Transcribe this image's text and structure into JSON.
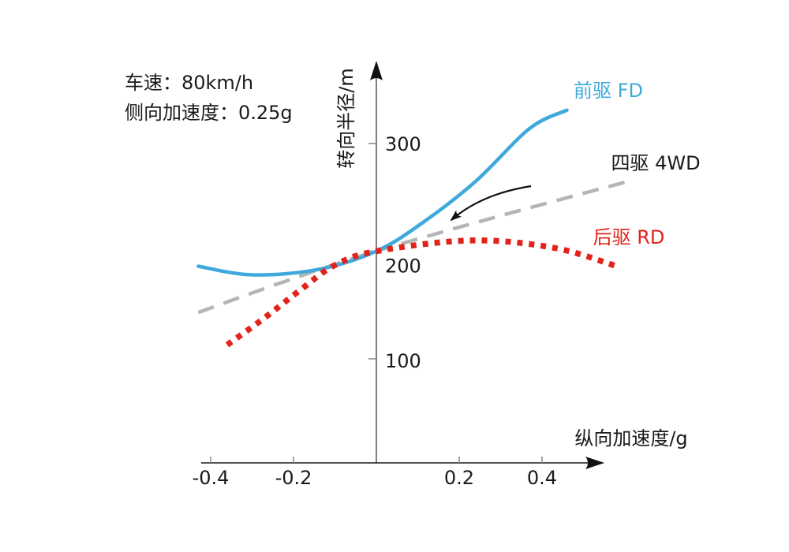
{
  "chart_data": {
    "type": "line",
    "title": "",
    "xlabel": "纵向加速度/g",
    "ylabel": "转向半径/m",
    "x_ticks": [
      -0.4,
      -0.2,
      0.2,
      0.4
    ],
    "y_ticks": [
      100,
      200,
      300
    ],
    "xlim": [
      -0.45,
      0.65
    ],
    "ylim": [
      75,
      360
    ],
    "grid": false,
    "legend_position": "right-of-curve-ends",
    "annotations": [
      "车速：80km/h",
      "侧向加速度：0.25g"
    ],
    "series": [
      {
        "name": "前驱 FD",
        "color": "#3fa9dc",
        "label_color": "#3fa9dc",
        "style": "solid",
        "points": [
          [
            -0.43,
            186
          ],
          [
            -0.3,
            178
          ],
          [
            -0.14,
            183
          ],
          [
            0,
            200
          ],
          [
            0.11,
            226
          ],
          [
            0.24,
            265
          ],
          [
            0.37,
            314
          ],
          [
            0.46,
            331
          ]
        ]
      },
      {
        "name": "四驱 4WD",
        "color": "#b5b5b5",
        "label_color": "#1a1a1a",
        "style": "dashed",
        "points": [
          [
            -0.43,
            143
          ],
          [
            -0.22,
            172
          ],
          [
            0,
            200
          ],
          [
            0.31,
            234
          ],
          [
            0.62,
            266
          ]
        ]
      },
      {
        "name": "后驱 RD",
        "color": "#e2231a",
        "label_color": "#e2231a",
        "style": "dotted",
        "points": [
          [
            -0.36,
            113
          ],
          [
            -0.27,
            138
          ],
          [
            -0.18,
            165
          ],
          [
            -0.1,
            187
          ],
          [
            0,
            200
          ],
          [
            0.23,
            210
          ],
          [
            0.43,
            203
          ],
          [
            0.58,
            186
          ]
        ]
      }
    ]
  }
}
